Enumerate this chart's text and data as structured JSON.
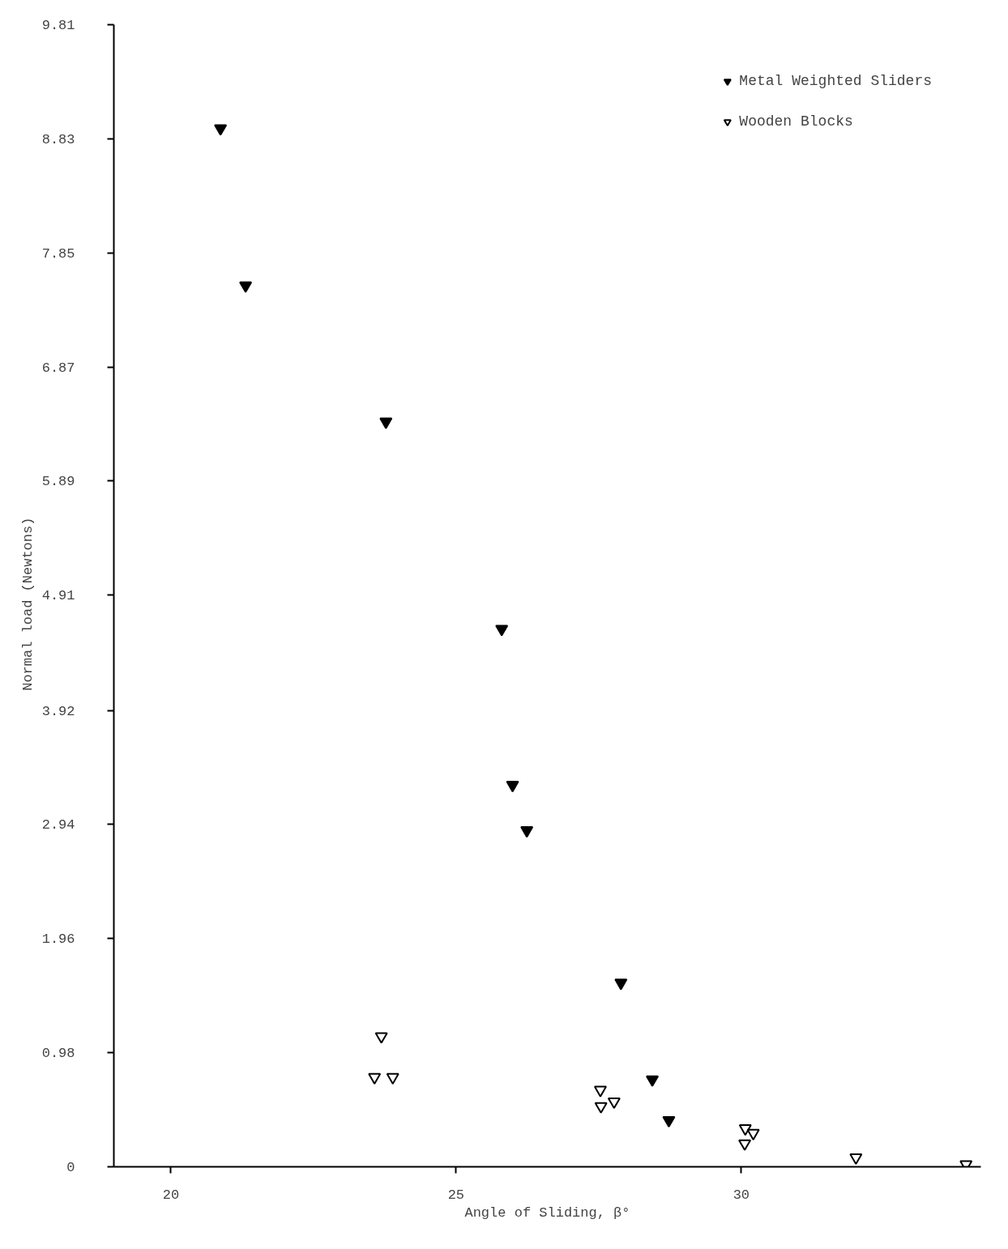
{
  "chart_data": {
    "type": "scatter",
    "xlabel": "Angle of Sliding, β°",
    "ylabel": "Normal load   (Newtons)",
    "xlim": [
      19,
      34.2
    ],
    "ylim": [
      0,
      9.81
    ],
    "xticks": [
      20,
      25,
      30
    ],
    "yticks": [
      0,
      0.98,
      1.96,
      2.94,
      3.92,
      4.91,
      5.89,
      6.87,
      7.85,
      8.83,
      9.81
    ],
    "grid": false,
    "legend": "top right",
    "marker": "triangle",
    "series": [
      {
        "name": "Metal Weighted Sliders",
        "color": "#000000",
        "x": [
          20.87,
          21.31,
          23.77,
          25.8,
          25.99,
          26.24,
          27.89,
          28.44,
          28.73
        ],
        "values": [
          8.92,
          7.57,
          6.4,
          4.62,
          3.28,
          2.89,
          1.58,
          0.75,
          0.4
        ]
      },
      {
        "name": "Wooden Blocks",
        "color": "#000000",
        "x": [
          23.69,
          23.57,
          23.89,
          27.53,
          27.54,
          27.77,
          30.07,
          30.21,
          30.06,
          32.01,
          33.94
        ],
        "values": [
          1.12,
          0.77,
          0.77,
          0.66,
          0.52,
          0.56,
          0.33,
          0.29,
          0.2,
          0.08,
          0.02
        ]
      }
    ]
  }
}
